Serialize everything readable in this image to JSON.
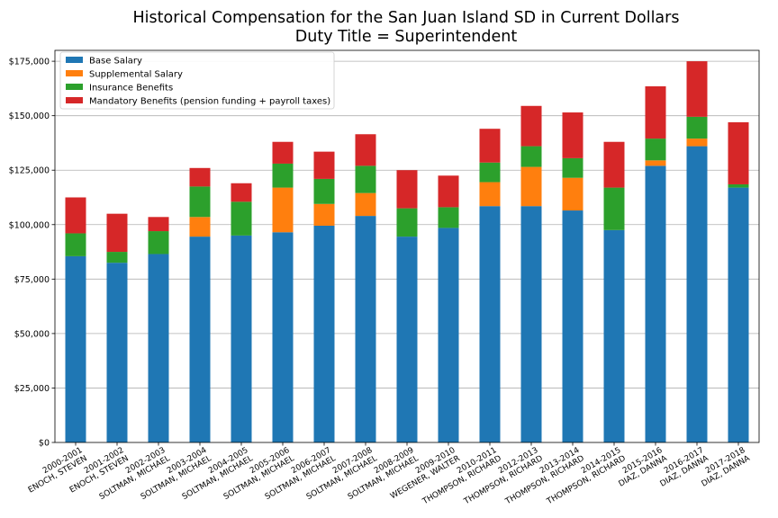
{
  "chart_data": {
    "type": "bar",
    "stacked": true,
    "title": "Historical Compensation for the San Juan Island SD in Current Dollars",
    "subtitle": "Duty Title = Superintendent",
    "xlabel": "",
    "ylabel": "",
    "ylim": [
      0,
      180000
    ],
    "yticks": [
      0,
      25000,
      50000,
      75000,
      100000,
      125000,
      150000,
      175000
    ],
    "ytick_labels": [
      "$0",
      "$25,000",
      "$50,000",
      "$75,000",
      "$100,000",
      "$125,000",
      "$150,000",
      "$175,000"
    ],
    "grid": "horizontal",
    "legend_position": "top-left",
    "categories": [
      [
        "2000-2001",
        "ENOCH, STEVEN"
      ],
      [
        "2001-2002",
        "ENOCH, STEVEN"
      ],
      [
        "2002-2003",
        "SOLTMAN, MICHAEL"
      ],
      [
        "2003-2004",
        "SOLTMAN, MICHAEL"
      ],
      [
        "2004-2005",
        "SOLTMAN, MICHAEL"
      ],
      [
        "2005-2006",
        "SOLTMAN, MICHAEL"
      ],
      [
        "2006-2007",
        "SOLTMAN, MICHAEL"
      ],
      [
        "2007-2008",
        "SOLTMAN, MICHAEL"
      ],
      [
        "2008-2009",
        "SOLTMAN, MICHAEL"
      ],
      [
        "2009-2010",
        "WEGENER, WALTER"
      ],
      [
        "2010-2011",
        "THOMPSON, RICHARD"
      ],
      [
        "2012-2013",
        "THOMPSON, RICHARD"
      ],
      [
        "2013-2014",
        "THOMPSON, RICHARD"
      ],
      [
        "2014-2015",
        "THOMPSON, RICHARD"
      ],
      [
        "2015-2016",
        "DIAZ, DANNA"
      ],
      [
        "2016-2017",
        "DIAZ, DANNA"
      ],
      [
        "2017-2018",
        "DIAZ, DANNA"
      ]
    ],
    "series": [
      {
        "name": "Base Salary",
        "color": "#1f77b4",
        "values": [
          85500,
          82500,
          86500,
          94500,
          95000,
          96500,
          99500,
          104000,
          94500,
          98500,
          108500,
          108500,
          106500,
          97500,
          127000,
          136000,
          117000
        ]
      },
      {
        "name": "Supplemental Salary",
        "color": "#ff7f0e",
        "values": [
          0,
          0,
          0,
          9000,
          0,
          20500,
          10000,
          10500,
          0,
          0,
          11000,
          18000,
          15000,
          0,
          2500,
          3500,
          0
        ]
      },
      {
        "name": "Insurance Benefits",
        "color": "#2ca02c",
        "values": [
          10500,
          5000,
          10500,
          14000,
          15500,
          11000,
          11500,
          12500,
          13000,
          9500,
          9000,
          9500,
          9000,
          19500,
          10000,
          10000,
          1500
        ]
      },
      {
        "name": "Mandatory Benefits (pension funding + payroll taxes)",
        "color": "#d62728",
        "values": [
          16500,
          17500,
          6500,
          8500,
          8500,
          10000,
          12500,
          14500,
          17500,
          14500,
          15500,
          18500,
          21000,
          21000,
          24000,
          25500,
          28500
        ]
      }
    ]
  }
}
